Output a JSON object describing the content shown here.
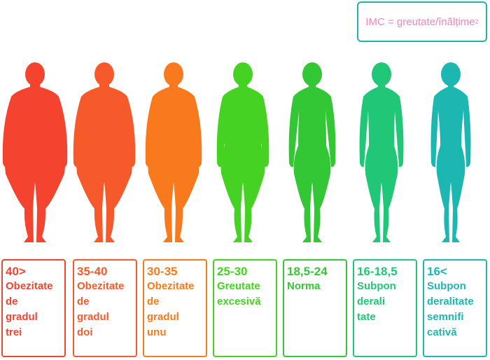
{
  "formula": {
    "text": "IMC = greutate/înălțime",
    "exponent": "2"
  },
  "categories": [
    {
      "range": "40>",
      "label": "Obezitate\nde\ngradul\ntrei",
      "color": "#f4432f",
      "shape": "obese3"
    },
    {
      "range": "35-40",
      "label": "Obezitate\nde\ngradul\ndoi",
      "color": "#f65a2b",
      "shape": "obese2"
    },
    {
      "range": "30-35",
      "label": "Obezitate\nde\ngradul\nunu",
      "color": "#f97a1c",
      "shape": "obese1"
    },
    {
      "range": "25-30",
      "label": "Greutate\nexcesivă",
      "color": "#46d222",
      "shape": "over"
    },
    {
      "range": "18,5-24",
      "label": "Norma",
      "color": "#34c735",
      "shape": "normal"
    },
    {
      "range": "16-18,5",
      "label": "Subpon\nderali\ntate",
      "color": "#1fc777",
      "shape": "under"
    },
    {
      "range": "16<",
      "label": "Subpon\nderalitate\nsemnifi\ncativă",
      "color": "#1db7b2",
      "shape": "severe"
    }
  ]
}
